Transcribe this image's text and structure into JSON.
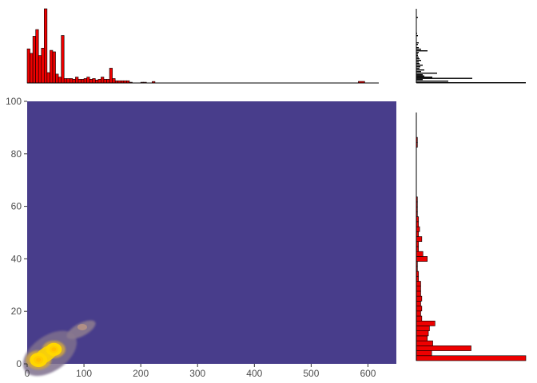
{
  "chart_data": [
    {
      "type": "heatmap",
      "title": "",
      "xlabel": "",
      "ylabel": "",
      "xlim": [
        0,
        650
      ],
      "ylim": [
        0,
        100
      ],
      "x_ticks": [
        0,
        100,
        200,
        300,
        400,
        500,
        600
      ],
      "y_ticks": [
        0,
        20,
        40,
        60,
        80,
        100
      ],
      "background_color": "#483D8B",
      "density_peaks": [
        {
          "x": 20,
          "y": 1.5,
          "level": 1.0
        },
        {
          "x": 47,
          "y": 5.5,
          "level": 0.9
        },
        {
          "x": 97,
          "y": 14,
          "level": 0.25
        }
      ],
      "grid": false,
      "legend": "none"
    },
    {
      "type": "bar",
      "role": "x-marginal-histogram",
      "fill": "#ee0000",
      "outline": "#000000",
      "bin_width": 5,
      "bins_start": [
        0,
        5,
        10,
        15,
        20,
        25,
        30,
        35,
        40,
        45,
        50,
        55,
        60,
        65,
        70,
        75,
        80,
        85,
        90,
        95,
        100,
        105,
        110,
        115,
        120,
        125,
        130,
        135,
        140,
        145,
        150,
        155,
        160,
        165,
        170,
        175,
        180,
        185,
        190,
        195,
        200,
        205,
        210,
        215,
        220,
        225,
        230,
        235,
        240,
        245,
        250,
        255,
        260,
        265,
        270,
        275,
        280,
        285,
        290,
        295,
        300,
        305,
        310,
        315,
        320,
        325,
        330,
        335,
        340,
        345,
        350,
        355,
        360,
        365,
        370,
        375,
        380,
        385,
        390,
        395,
        400,
        405,
        410,
        415,
        420,
        425,
        430,
        435,
        440,
        445,
        450,
        455,
        460,
        465,
        470,
        475,
        480,
        485,
        490,
        495,
        500,
        505,
        510,
        515,
        520,
        525,
        530,
        535,
        540,
        545,
        550,
        555,
        560,
        565,
        570,
        575,
        580,
        585,
        590,
        595,
        600,
        605,
        610,
        615
      ],
      "counts": [
        46,
        40,
        63,
        72,
        37,
        47,
        100,
        14,
        44,
        42,
        12,
        8,
        64,
        6,
        6,
        6,
        5,
        8,
        5,
        5,
        6,
        8,
        5,
        6,
        4,
        5,
        8,
        5,
        5,
        20,
        6,
        3,
        3,
        3,
        3,
        3,
        1,
        0,
        0,
        0,
        1,
        1,
        0,
        0,
        2,
        0,
        0,
        0,
        0,
        0,
        0,
        0,
        0,
        0,
        0,
        0,
        0,
        0,
        0,
        0,
        0,
        0,
        0,
        0,
        0,
        0,
        0,
        0,
        0,
        0,
        0,
        0,
        0,
        0,
        0,
        0,
        0,
        0,
        0,
        0,
        0,
        0,
        0,
        0,
        0,
        0,
        0,
        0,
        0,
        0,
        0,
        0,
        0,
        0,
        0,
        0,
        0,
        0,
        0,
        0,
        0,
        0,
        0,
        0,
        0,
        0,
        0,
        0,
        0,
        0,
        0,
        0,
        0,
        0,
        0,
        0,
        0,
        0,
        0,
        0,
        0,
        0,
        0,
        0
      ],
      "counts_note_only": ""
    },
    {
      "type": "bar",
      "role": "y-marginal-histogram",
      "orientation": "horizontal",
      "fill": "#ee0000",
      "outline": "#000000",
      "bin_width": 2,
      "bins_start": [
        0,
        2,
        4,
        6,
        8,
        10,
        12,
        14,
        16,
        18,
        20,
        22,
        24,
        26,
        28,
        30,
        32,
        34,
        36,
        38,
        40,
        42,
        44,
        46,
        48,
        50,
        52,
        54,
        56,
        58,
        60,
        62,
        64,
        66,
        68,
        70,
        72,
        74,
        76,
        78,
        80,
        82,
        84,
        86,
        88,
        90,
        92,
        94,
        96,
        98
      ],
      "counts": [
        100,
        14,
        50,
        15,
        10,
        11,
        12,
        17,
        5,
        4,
        5,
        4,
        5,
        4,
        4,
        4,
        2,
        2,
        1,
        1,
        10,
        6,
        2,
        2,
        5,
        2,
        3,
        2,
        2,
        1,
        1,
        1,
        1,
        0,
        0,
        0,
        0,
        0,
        0,
        0,
        0,
        0,
        0,
        1,
        1,
        0,
        0,
        0,
        0,
        0
      ]
    }
  ]
}
